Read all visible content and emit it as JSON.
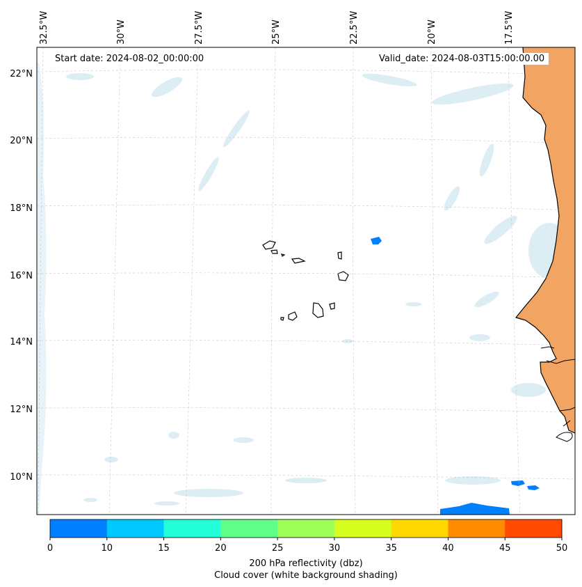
{
  "map": {
    "start_date": "Start date: 2024-08-02_00:00:00",
    "valid_date": "Valid_date: 2024-08-03T15:00:00.00",
    "longitude_labels": [
      "32.5°W",
      "30°W",
      "27.5°W",
      "25°W",
      "22.5°W",
      "20°W",
      "17.5°W"
    ],
    "latitude_labels": [
      "22°N",
      "20°N",
      "18°N",
      "16°N",
      "14°N",
      "12°N",
      "10°N"
    ],
    "extent": {
      "lon_min": -32.8,
      "lon_max": -15.0,
      "lat_min": 8.9,
      "lat_max": 22.8
    },
    "land_fill_color": "#f2a462",
    "cloud_shading_color": "#d6ebf2",
    "grid": true
  },
  "colorbar": {
    "ticks": [
      "0",
      "10",
      "15",
      "20",
      "25",
      "30",
      "35",
      "40",
      "45",
      "50"
    ],
    "colors": [
      "#0080ff",
      "#00c8ff",
      "#22ffd8",
      "#60ff8c",
      "#9dff57",
      "#d6ff20",
      "#ffd800",
      "#ff8c00",
      "#ff4a00"
    ],
    "label_line1": "200 hPa reflectivity (dbz)",
    "label_line2": "Cloud cover (white background shading)"
  }
}
